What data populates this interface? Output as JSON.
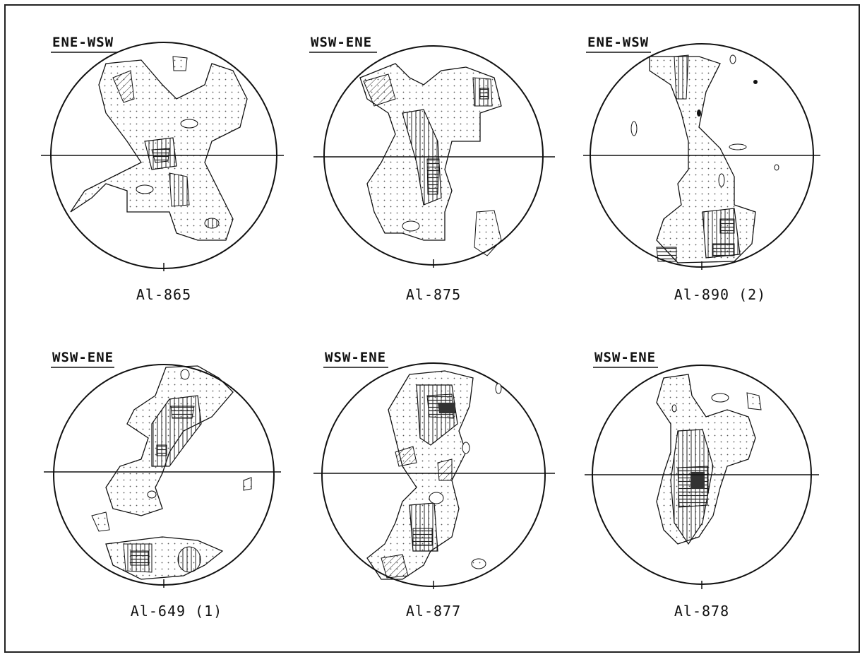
{
  "figure": {
    "diagrams": [
      {
        "direction": "ENE-WSW",
        "sample": "Al-865"
      },
      {
        "direction": "WSW-ENE",
        "sample": "Al-875"
      },
      {
        "direction": "ENE-WSW",
        "sample": "Al-890 (2)"
      },
      {
        "direction": "WSW-ENE",
        "sample": "Al-649 (1)"
      },
      {
        "direction": "WSW-ENE",
        "sample": "Al-877"
      },
      {
        "direction": "WSW-ENE",
        "sample": "Al-878"
      }
    ],
    "colors": {
      "line": "#111111",
      "stipple": "#555555",
      "background": "#ffffff"
    }
  }
}
